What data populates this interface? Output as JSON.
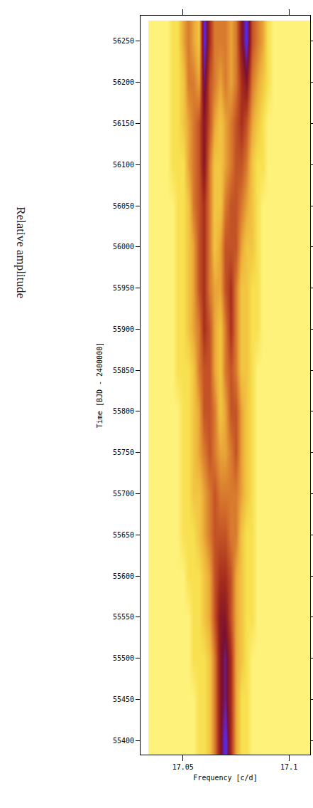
{
  "chart_data": {
    "type": "heatmap",
    "x_label": "Frequency [c/d]",
    "y_label": "Time [BJD - 2400000]",
    "annotations": [
      "Relative amplitude"
    ],
    "x": [
      17.035,
      17.0375,
      17.04,
      17.0425,
      17.045,
      17.0475,
      17.05,
      17.0525,
      17.055,
      17.0575,
      17.06,
      17.0625,
      17.065,
      17.0675,
      17.07,
      17.0725,
      17.075,
      17.0775,
      17.08,
      17.0825,
      17.085,
      17.0875,
      17.09,
      17.0925,
      17.095,
      17.0975,
      17.1,
      17.1025,
      17.105,
      17.1075,
      17.11
    ],
    "y": [
      55400,
      55450,
      55500,
      55550,
      55600,
      55650,
      55700,
      55750,
      55800,
      55850,
      55900,
      55950,
      56000,
      56050,
      56100,
      56150,
      56200,
      56250
    ],
    "cells": [
      [
        1,
        1,
        1,
        1,
        1,
        1,
        1,
        1,
        1,
        2,
        2,
        3,
        5,
        8,
        10,
        7,
        4,
        2,
        2,
        1,
        1,
        1,
        1,
        1,
        1,
        1,
        1,
        1,
        1,
        1,
        1
      ],
      [
        1,
        1,
        1,
        1,
        1,
        1,
        1,
        1,
        1,
        2,
        2,
        3,
        5,
        8,
        9,
        7,
        4,
        2,
        2,
        1,
        1,
        1,
        1,
        1,
        1,
        1,
        1,
        1,
        1,
        1,
        1
      ],
      [
        1,
        1,
        1,
        1,
        1,
        1,
        1,
        1,
        2,
        2,
        2,
        3,
        5,
        8,
        9,
        7,
        4,
        3,
        2,
        1,
        1,
        1,
        1,
        1,
        1,
        1,
        1,
        1,
        1,
        1,
        1
      ],
      [
        1,
        1,
        1,
        1,
        1,
        1,
        1,
        1,
        2,
        2,
        3,
        4,
        6,
        8,
        8,
        6,
        4,
        3,
        2,
        2,
        1,
        1,
        1,
        1,
        1,
        1,
        1,
        1,
        1,
        1,
        1
      ],
      [
        1,
        1,
        1,
        1,
        1,
        1,
        1,
        2,
        2,
        2,
        3,
        4,
        6,
        7,
        7,
        6,
        4,
        3,
        2,
        2,
        1,
        1,
        1,
        1,
        1,
        1,
        1,
        1,
        1,
        1,
        1
      ],
      [
        1,
        1,
        1,
        1,
        1,
        1,
        2,
        2,
        2,
        3,
        4,
        5,
        6,
        6,
        6,
        5,
        5,
        3,
        2,
        2,
        1,
        1,
        1,
        1,
        1,
        1,
        1,
        1,
        1,
        1,
        1
      ],
      [
        1,
        1,
        1,
        1,
        1,
        1,
        2,
        2,
        3,
        3,
        4,
        5,
        6,
        5,
        5,
        5,
        5,
        4,
        3,
        2,
        1,
        1,
        1,
        1,
        1,
        1,
        1,
        1,
        1,
        1,
        1
      ],
      [
        1,
        1,
        1,
        1,
        1,
        1,
        2,
        2,
        3,
        4,
        5,
        6,
        5,
        4,
        4,
        5,
        6,
        4,
        3,
        2,
        1,
        1,
        1,
        1,
        1,
        1,
        1,
        1,
        1,
        1,
        1
      ],
      [
        1,
        1,
        1,
        1,
        1,
        1,
        2,
        2,
        3,
        4,
        6,
        6,
        5,
        3,
        4,
        6,
        6,
        4,
        3,
        2,
        1,
        1,
        1,
        1,
        1,
        1,
        1,
        1,
        1,
        1,
        1
      ],
      [
        1,
        1,
        1,
        1,
        1,
        2,
        2,
        2,
        3,
        5,
        6,
        6,
        4,
        3,
        5,
        6,
        5,
        3,
        3,
        2,
        1,
        1,
        1,
        1,
        1,
        1,
        1,
        1,
        1,
        1,
        1
      ],
      [
        1,
        1,
        1,
        1,
        1,
        2,
        2,
        3,
        4,
        5,
        7,
        6,
        4,
        3,
        5,
        7,
        5,
        3,
        3,
        2,
        2,
        1,
        1,
        1,
        1,
        1,
        1,
        1,
        1,
        1,
        1
      ],
      [
        1,
        1,
        1,
        1,
        1,
        2,
        2,
        3,
        4,
        6,
        7,
        5,
        4,
        4,
        6,
        7,
        5,
        3,
        3,
        2,
        2,
        1,
        1,
        1,
        1,
        1,
        1,
        1,
        1,
        1,
        1
      ],
      [
        1,
        1,
        1,
        1,
        1,
        2,
        2,
        3,
        4,
        6,
        7,
        5,
        3,
        4,
        6,
        6,
        6,
        4,
        3,
        3,
        2,
        1,
        1,
        1,
        1,
        1,
        1,
        1,
        1,
        1,
        1
      ],
      [
        1,
        1,
        1,
        1,
        1,
        2,
        2,
        3,
        5,
        6,
        7,
        5,
        3,
        3,
        5,
        6,
        6,
        5,
        4,
        3,
        2,
        1,
        1,
        1,
        1,
        1,
        1,
        1,
        1,
        1,
        1
      ],
      [
        1,
        1,
        1,
        1,
        2,
        2,
        2,
        4,
        5,
        6,
        8,
        5,
        3,
        3,
        4,
        5,
        6,
        6,
        5,
        3,
        2,
        2,
        1,
        1,
        1,
        1,
        1,
        1,
        1,
        1,
        1
      ],
      [
        1,
        1,
        1,
        1,
        2,
        2,
        3,
        4,
        5,
        6,
        8,
        6,
        4,
        3,
        4,
        5,
        6,
        7,
        6,
        4,
        3,
        2,
        1,
        1,
        1,
        1,
        1,
        1,
        1,
        1,
        1
      ],
      [
        1,
        1,
        1,
        1,
        2,
        2,
        3,
        5,
        5,
        4,
        9,
        6,
        5,
        4,
        5,
        4,
        5,
        7,
        8,
        5,
        4,
        3,
        2,
        1,
        1,
        1,
        1,
        1,
        1,
        1,
        1
      ],
      [
        1,
        1,
        1,
        1,
        2,
        2,
        4,
        5,
        4,
        3,
        10,
        7,
        5,
        5,
        5,
        4,
        5,
        8,
        10,
        6,
        5,
        4,
        2,
        1,
        1,
        1,
        1,
        1,
        1,
        1,
        1
      ]
    ],
    "xlim": [
      17.03,
      17.11
    ],
    "xticks": [
      17.05,
      17.1
    ],
    "ylim": [
      55383,
      56281
    ],
    "yticks": [
      55400,
      55450,
      55500,
      55550,
      55600,
      55650,
      55700,
      55750,
      55800,
      55850,
      55900,
      55950,
      56000,
      56050,
      56100,
      56150,
      56200,
      56250
    ],
    "grid": false
  }
}
